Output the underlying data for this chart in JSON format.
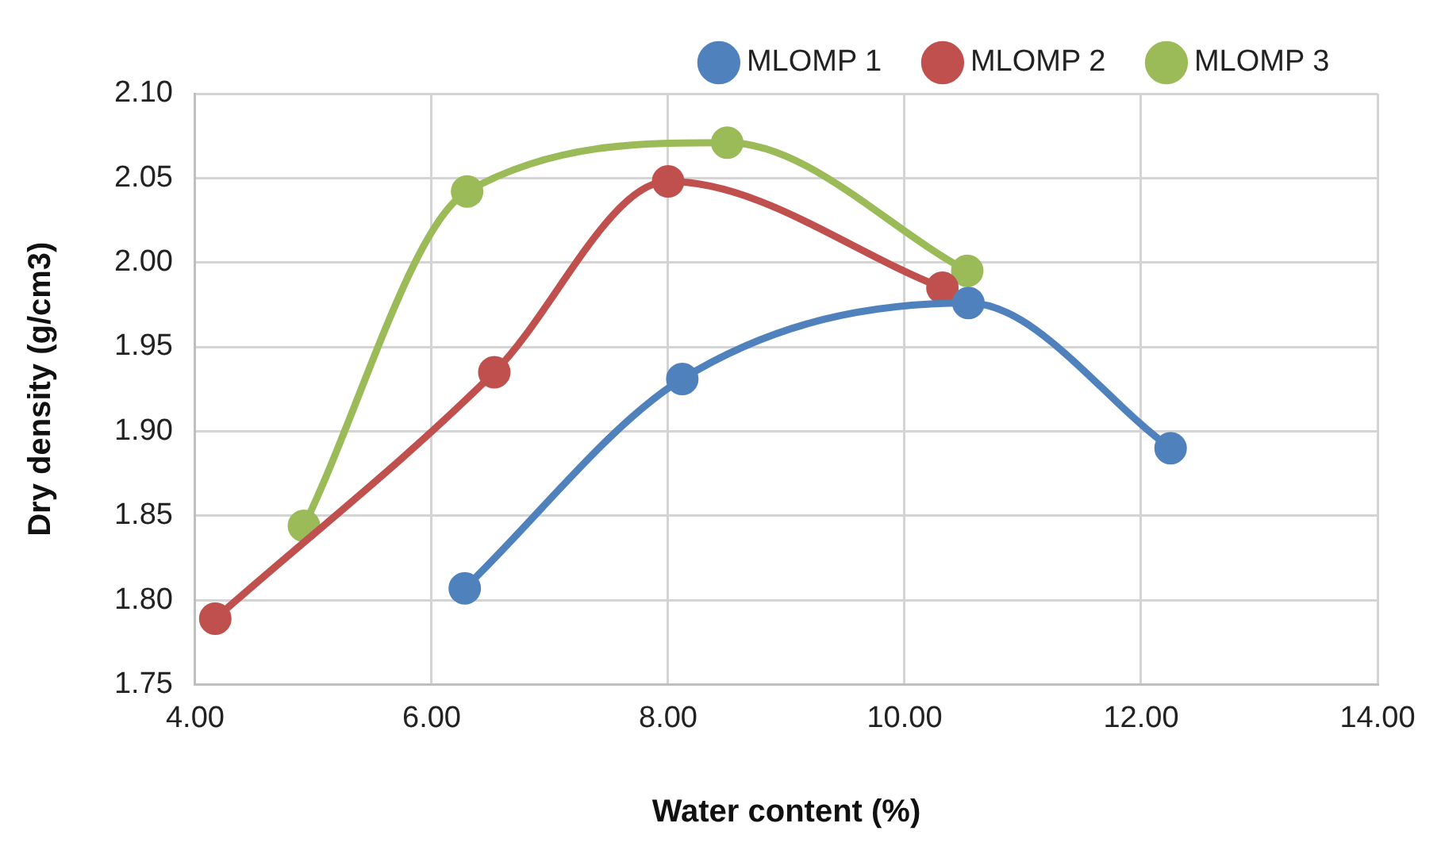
{
  "chart_data": {
    "type": "line",
    "xlabel": "Water content (%)",
    "ylabel": "Dry density (g/cm3)",
    "xlim": [
      4,
      14
    ],
    "xticks": [
      {
        "value": 4,
        "label": "4.00"
      },
      {
        "value": 6,
        "label": "6.00"
      },
      {
        "value": 8,
        "label": "8.00"
      },
      {
        "value": 10,
        "label": "10.00"
      },
      {
        "value": 12,
        "label": "12.00"
      },
      {
        "value": 14,
        "label": "14.00"
      }
    ],
    "ylim": [
      1.75,
      2.1
    ],
    "yticks": [
      {
        "value": 1.75,
        "label": "1.75"
      },
      {
        "value": 1.8,
        "label": "1.80"
      },
      {
        "value": 1.85,
        "label": "1.85"
      },
      {
        "value": 1.9,
        "label": "1.90"
      },
      {
        "value": 1.95,
        "label": "1.95"
      },
      {
        "value": 2.0,
        "label": "2.00"
      },
      {
        "value": 2.05,
        "label": "2.05"
      },
      {
        "value": 2.1,
        "label": "2.10"
      }
    ],
    "grid": true,
    "legend": "top",
    "marker": "circle",
    "line_style": "solid",
    "series": [
      {
        "name": "MLOMP 1",
        "color": "#4f81bd",
        "x": [
          6.28,
          8.12,
          10.54,
          12.25
        ],
        "values": [
          1.807,
          1.931,
          1.976,
          1.89
        ]
      },
      {
        "name": "MLOMP 2",
        "color": "#c0504d",
        "x": [
          4.17,
          6.53,
          8.0,
          10.32
        ],
        "values": [
          1.789,
          1.935,
          2.048,
          1.985
        ]
      },
      {
        "name": "MLOMP 3",
        "color": "#9bbb59",
        "x": [
          4.92,
          6.3,
          8.5,
          10.53
        ],
        "values": [
          1.844,
          2.042,
          2.071,
          1.995
        ]
      }
    ]
  }
}
